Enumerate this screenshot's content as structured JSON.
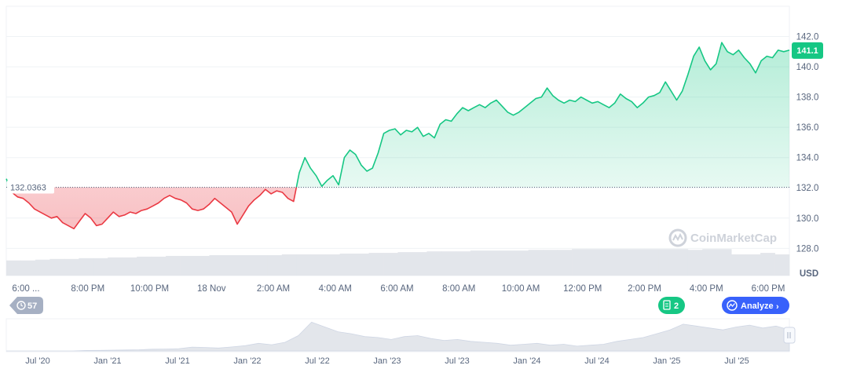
{
  "chart_data": {
    "type": "area",
    "currency_label": "USD",
    "baseline_value": 132.0363,
    "baseline_label": "132.0363",
    "current_price_label": "141.1",
    "y_ticks": [
      128.0,
      130.0,
      132.0,
      134.0,
      136.0,
      138.0,
      140.0,
      142.0
    ],
    "y_tick_labels": [
      "128.0",
      "130.0",
      "132.0",
      "134.0",
      "136.0",
      "138.0",
      "140.0",
      "142.0"
    ],
    "ylim": [
      126.2,
      144.0
    ],
    "x_ticks": [
      "6:00 ...",
      "8:00 PM",
      "10:00 PM",
      "18 Nov",
      "2:00 AM",
      "4:00 AM",
      "6:00 AM",
      "8:00 AM",
      "10:00 AM",
      "12:00 PM",
      "2:00 PM",
      "4:00 PM",
      "6:00 PM"
    ],
    "price_series": [
      132.6,
      131.7,
      131.4,
      131.3,
      131.0,
      130.6,
      130.4,
      130.2,
      130.0,
      130.1,
      129.7,
      129.5,
      129.3,
      129.8,
      130.3,
      130.0,
      129.5,
      129.6,
      130.0,
      130.4,
      130.1,
      130.2,
      130.4,
      130.3,
      130.5,
      130.6,
      130.8,
      131.0,
      131.3,
      131.5,
      131.3,
      131.2,
      131.0,
      130.6,
      130.5,
      130.6,
      130.9,
      131.3,
      131.0,
      130.7,
      130.4,
      129.6,
      130.2,
      130.8,
      131.2,
      131.5,
      131.9,
      131.6,
      131.8,
      131.7,
      131.3,
      131.1,
      133.0,
      134.0,
      133.3,
      132.8,
      132.1,
      132.5,
      132.8,
      132.2,
      134.0,
      134.5,
      134.2,
      133.5,
      133.1,
      133.3,
      134.3,
      135.6,
      135.8,
      135.9,
      135.5,
      135.8,
      135.7,
      136.0,
      135.4,
      135.6,
      135.3,
      136.2,
      136.5,
      136.4,
      136.9,
      137.3,
      137.1,
      137.3,
      137.5,
      137.3,
      137.6,
      137.8,
      137.4,
      137.0,
      136.8,
      137.0,
      137.3,
      137.6,
      137.9,
      138.0,
      138.6,
      138.1,
      137.8,
      137.6,
      137.8,
      137.7,
      138.0,
      137.8,
      137.6,
      137.7,
      137.5,
      137.3,
      137.6,
      138.2,
      137.9,
      137.7,
      137.3,
      137.6,
      138.0,
      138.1,
      138.3,
      139.0,
      138.4,
      137.8,
      138.4,
      139.5,
      140.7,
      141.3,
      140.4,
      139.8,
      140.2,
      141.6,
      141.0,
      140.8,
      141.1,
      140.6,
      140.2,
      139.6,
      140.4,
      140.7,
      140.6,
      141.1,
      141.0,
      141.1
    ],
    "volume_series": [
      127.2,
      127.2,
      127.25,
      127.3,
      127.3,
      127.35,
      127.35,
      127.4,
      127.4,
      127.45,
      127.45,
      127.5,
      127.5,
      127.5,
      127.55,
      127.55,
      127.55,
      127.55,
      127.55,
      127.6,
      127.6,
      127.6,
      127.6,
      127.65,
      127.65,
      127.7,
      127.7,
      127.75,
      127.75,
      127.8,
      127.8,
      127.8,
      127.85,
      127.85,
      127.85,
      127.85,
      127.9,
      127.9,
      127.9,
      127.95,
      127.95,
      127.95,
      127.95,
      127.95,
      127.95,
      127.95,
      127.95,
      127.9,
      127.95,
      127.95,
      127.6,
      127.6,
      127.7,
      127.6
    ],
    "navigator_labels": [
      "Jul '20",
      "Jan '21",
      "Jul '21",
      "Jan '22",
      "Jul '22",
      "Jan '23",
      "Jul '23",
      "Jan '24",
      "Jul '24",
      "Jan '25",
      "Jul '25"
    ],
    "navigator_series": [
      0,
      0,
      0,
      0,
      0,
      0,
      0.5,
      0.6,
      0.8,
      1.0,
      1.2,
      1.8,
      2.0,
      2.4,
      4.0,
      3.6,
      3.0,
      4.2,
      5.5,
      8.0,
      6.5,
      9.0,
      16.0,
      30.0,
      25.0,
      20.0,
      18.0,
      15.0,
      14.0,
      12.0,
      15.0,
      16.0,
      13.0,
      11.0,
      12.0,
      10.0,
      9.0,
      8.0,
      6.0,
      7.0,
      8.0,
      6.0,
      7.0,
      5.0,
      6.0,
      7.0,
      10.0,
      12.0,
      14.0,
      18.0,
      22.0,
      28.0,
      26.0,
      24.0,
      22.0,
      25.0,
      27.0,
      24.0,
      26.0,
      22.0
    ],
    "colors": {
      "up": "#16c784",
      "down": "#ea3943",
      "up_fill": "#16c784",
      "down_fill": "#ea3943"
    }
  },
  "badges": {
    "history_count": "57",
    "news_count": "2",
    "analyze_label": "Analyze",
    "analyze_arrow": "›"
  },
  "watermark": {
    "text": "CoinMarketCap",
    "icon": "coinmarketcap-logo-icon"
  },
  "icons": {
    "history": "history-icon",
    "news": "document-icon",
    "analyze": "ai-analyze-icon",
    "handle": "drag-handle-icon"
  }
}
